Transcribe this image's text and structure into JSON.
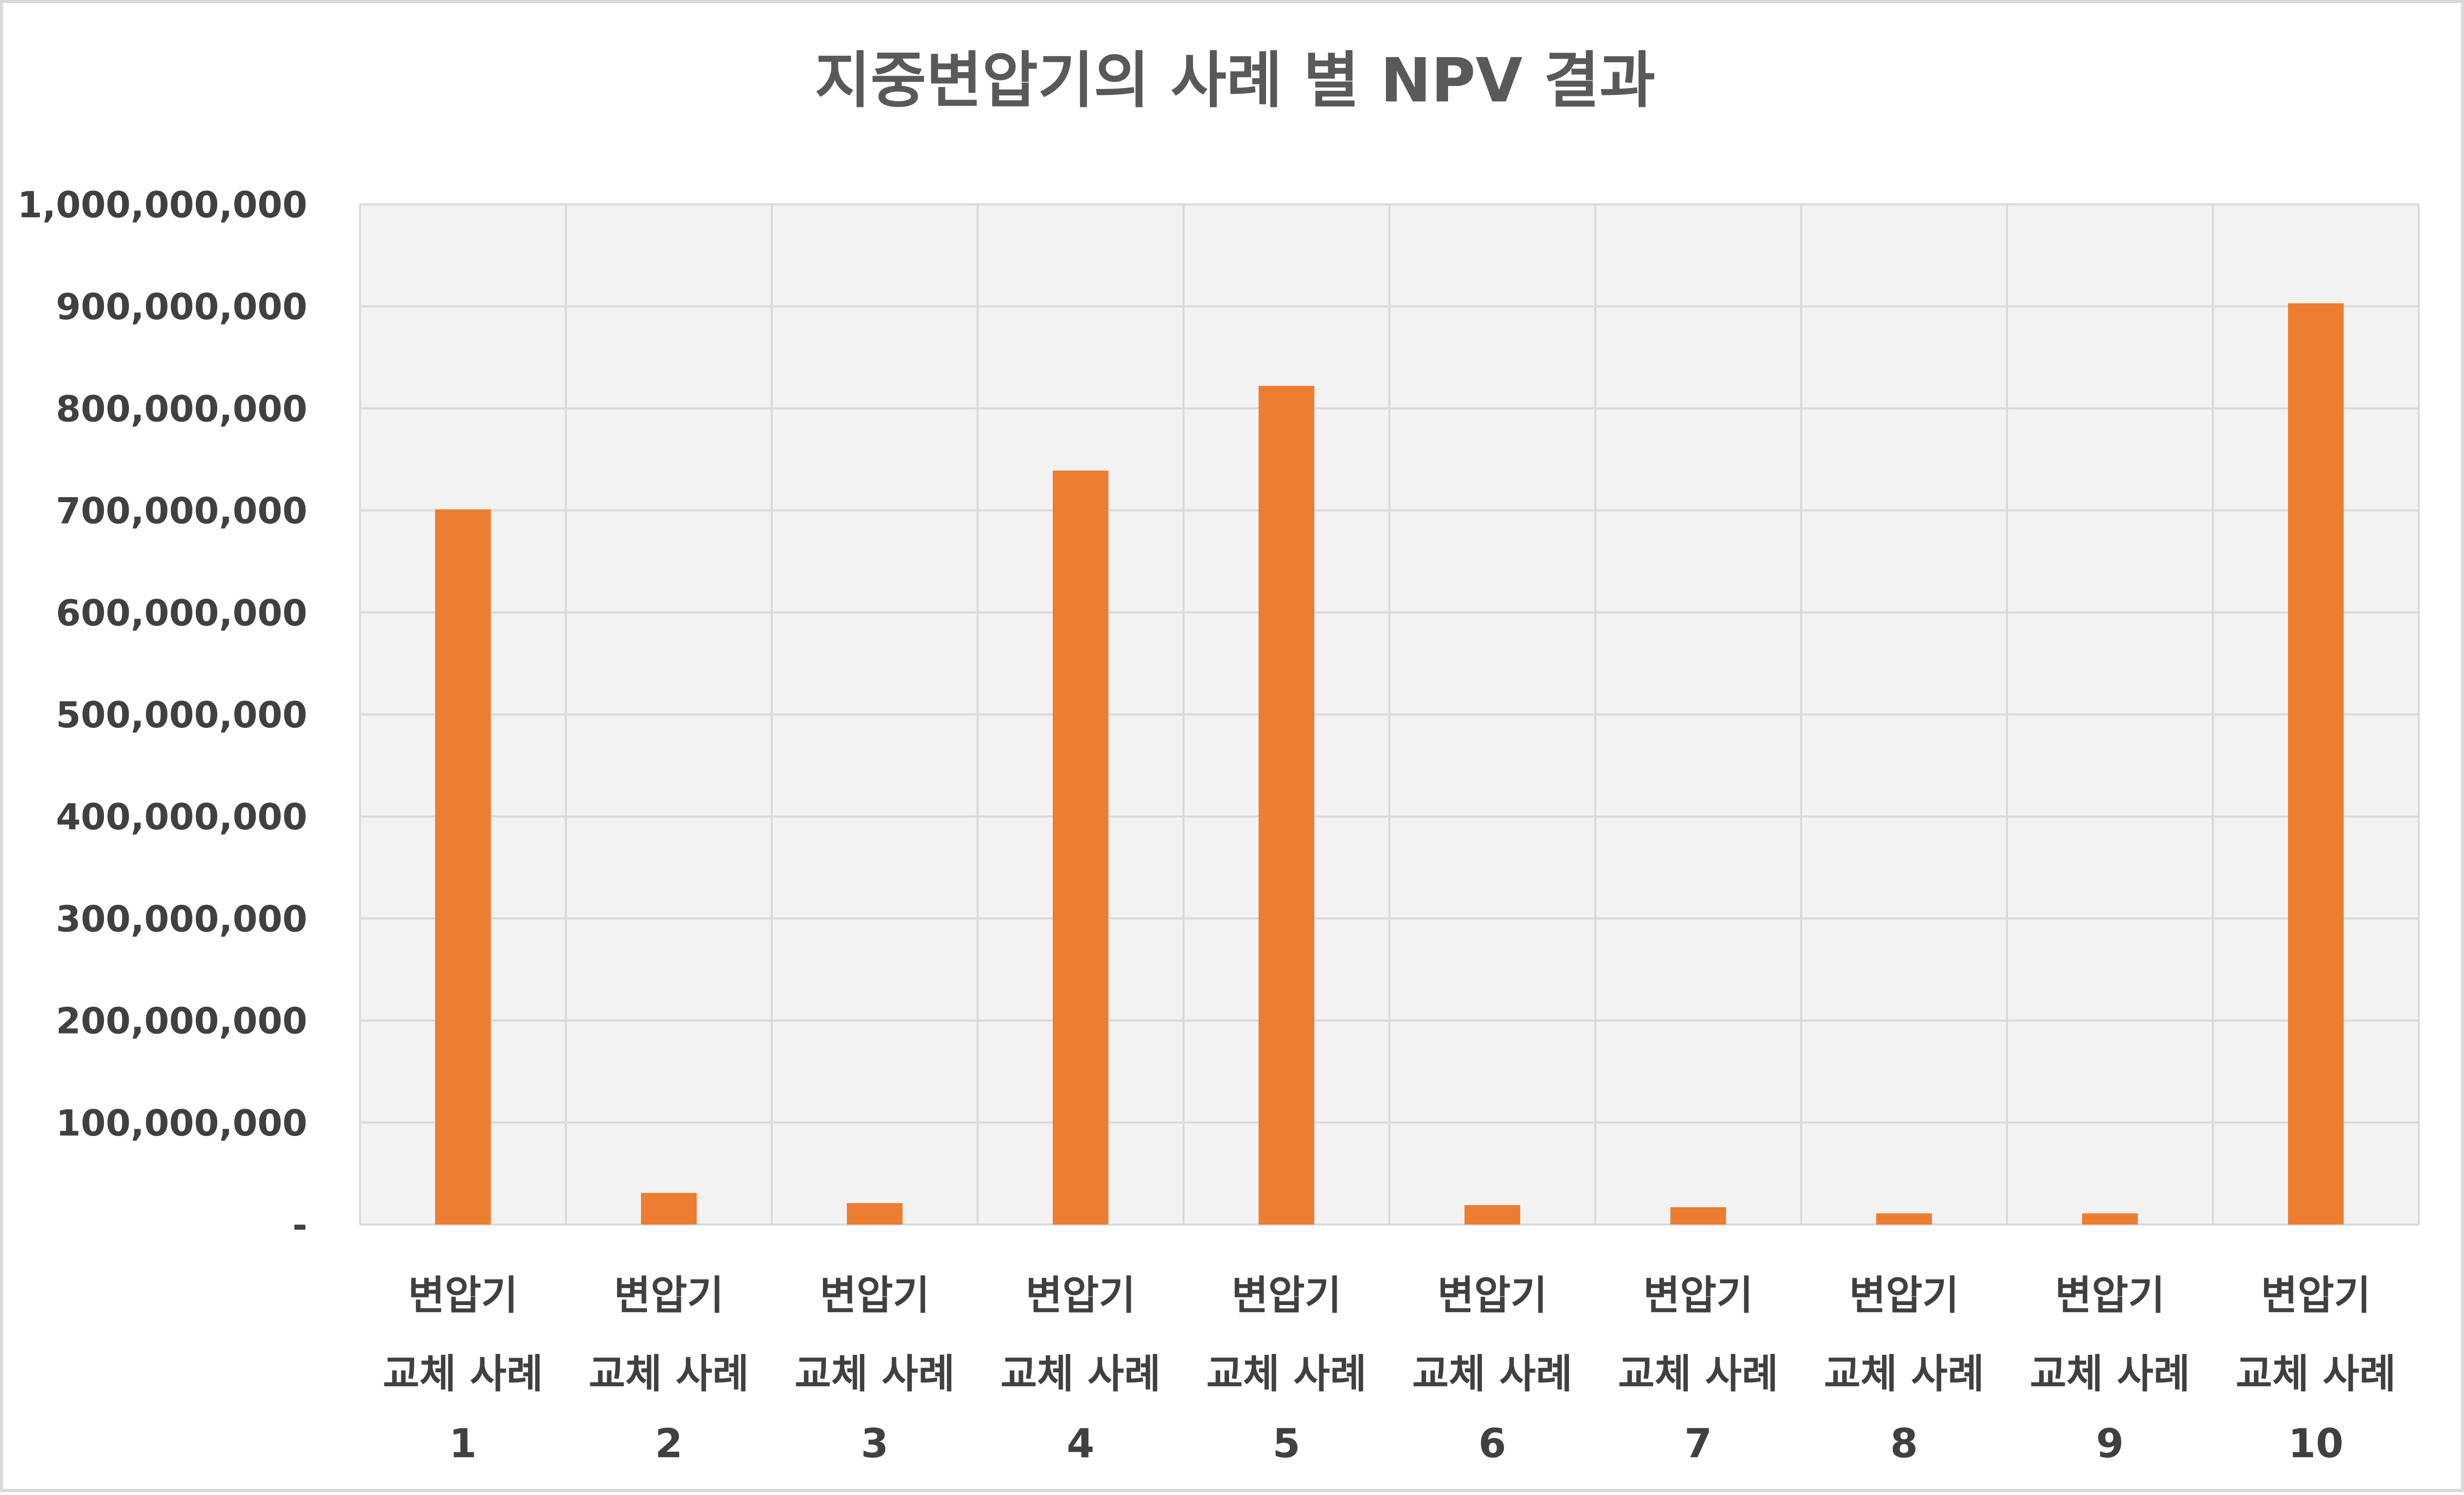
{
  "chart_data": {
    "type": "bar",
    "title": "지중변압기의 사례 별 NPV 결과",
    "categories": [
      [
        "변압기",
        "교체 사례",
        "1"
      ],
      [
        "변압기",
        "교체 사례",
        "2"
      ],
      [
        "변압기",
        "교체 사례",
        "3"
      ],
      [
        "변압기",
        "교체 사례",
        "4"
      ],
      [
        "변압기",
        "교체 사례",
        "5"
      ],
      [
        "변압기",
        "교체 사례",
        "6"
      ],
      [
        "변압기",
        "교체 사례",
        "7"
      ],
      [
        "변압기",
        "교체 사례",
        "8"
      ],
      [
        "변압기",
        "교체 사례",
        "9"
      ],
      [
        "변압기",
        "교체 사례",
        "10"
      ]
    ],
    "values": [
      701000000,
      31000000,
      21000000,
      739000000,
      822000000,
      19000000,
      17000000,
      11000000,
      11000000,
      903000000
    ],
    "ylim": [
      0,
      1000000000
    ],
    "yticks": [
      0,
      100000000,
      200000000,
      300000000,
      400000000,
      500000000,
      600000000,
      700000000,
      800000000,
      900000000,
      1000000000
    ],
    "ytick_labels": [
      "-",
      "100,000,000",
      "200,000,000",
      "300,000,000",
      "400,000,000",
      "500,000,000",
      "600,000,000",
      "700,000,000",
      "800,000,000",
      "900,000,000",
      "1,000,000,000"
    ],
    "xlabel": "",
    "ylabel": "",
    "grid": true,
    "legend": "none",
    "colors": {
      "bar": "#ed7d31",
      "plot_background": "#f2f2f2",
      "grid": "#d9d9d9",
      "title": "#595959",
      "tick_text": "#404040"
    }
  }
}
